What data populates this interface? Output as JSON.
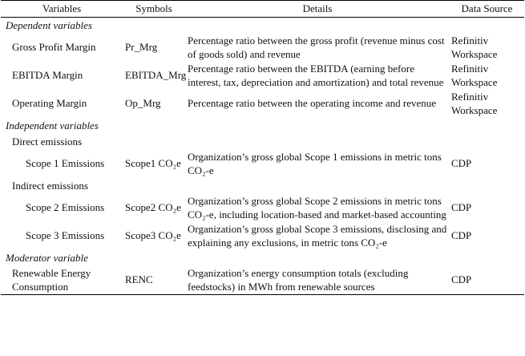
{
  "table": {
    "header": [
      "Variables",
      "Symbols",
      "Details",
      "Data Source"
    ],
    "sections": [
      {
        "title": "Dependent variables",
        "rows": [
          {
            "variable": "Gross Profit Margin",
            "symbol": "Pr_Mrg",
            "details": "Percentage ratio between the gross profit (revenue minus cost of goods sold) and revenue",
            "source": "Refinitiv Workspace"
          },
          {
            "variable": "EBITDA Margin",
            "symbol": "EBITDA_Mrg",
            "details": "Percentage ratio between the EBITDA (earning before interest, tax, depreciation and amortization) and total revenue",
            "source": "Refinitiv Workspace"
          },
          {
            "variable": "Operating Margin",
            "symbol": "Op_Mrg",
            "details": "Percentage ratio between the operating income and revenue",
            "source": "Refinitiv Workspace"
          }
        ]
      },
      {
        "title": "Independent variables",
        "groups": [
          {
            "title": "Direct emissions",
            "rows": [
              {
                "variable": "Scope 1 Emissions",
                "symbol": "Scope1 CO₂e",
                "details": "Organization’s gross global Scope 1 emissions in metric tons CO₂-e",
                "source": "CDP"
              }
            ]
          },
          {
            "title": "Indirect emissions",
            "rows": [
              {
                "variable": "Scope 2 Emissions",
                "symbol": "Scope2 CO₂e",
                "details": "Organization’s gross global Scope 2 emissions in metric tons CO₂-e, including location-based and market-based accounting",
                "source": "CDP"
              },
              {
                "variable": "Scope 3 Emissions",
                "symbol": "Scope3 CO₂e",
                "details": "Organization’s gross global Scope 3 emissions, disclosing and explaining any exclusions, in metric tons CO₂-e",
                "source": "CDP"
              }
            ]
          }
        ]
      },
      {
        "title": "Moderator variable",
        "rows": [
          {
            "variable": "Renewable Energy Consumption",
            "symbol": "RENC",
            "details": "Organization’s energy consumption totals (excluding feedstocks) in MWh from renewable sources",
            "source": "CDP"
          }
        ]
      }
    ]
  }
}
